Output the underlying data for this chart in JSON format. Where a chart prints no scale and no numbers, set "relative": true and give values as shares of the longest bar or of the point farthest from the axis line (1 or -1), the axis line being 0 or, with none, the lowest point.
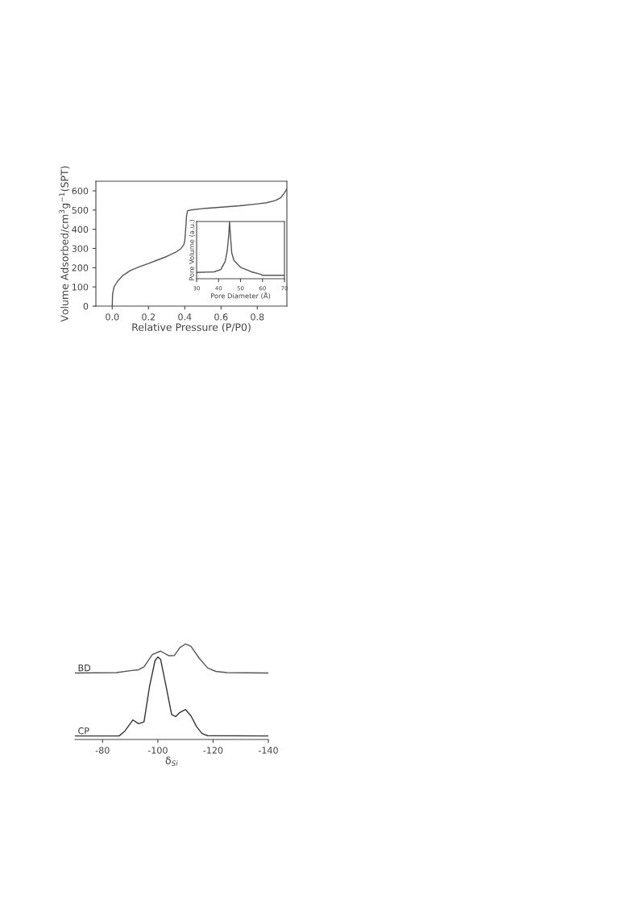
{
  "chart_data": [
    {
      "type": "line",
      "xlabel": "Relative Pressure (P/P0)",
      "ylabel": "Volume Adsorbed/cm$^{3}$g$^{−1}$(SPT)",
      "xlim": [
        -0.09,
        0.963
      ],
      "ylim": [
        0,
        650
      ],
      "xticks": [
        {
          "value": 0,
          "label": "0.0"
        },
        {
          "value": 0.2,
          "label": "0.2"
        },
        {
          "value": 0.4,
          "label": "0.4"
        },
        {
          "value": 0.6,
          "label": "0.6"
        },
        {
          "value": 0.8,
          "label": "0.8"
        }
      ],
      "yticks": [
        0,
        100,
        200,
        300,
        400,
        500,
        600
      ],
      "grid": false,
      "marker": "none",
      "line_style": "solid",
      "x": [
        0,
        0.002,
        0.01,
        0.03,
        0.06,
        0.1,
        0.15,
        0.2,
        0.25,
        0.3,
        0.35,
        0.38,
        0.395,
        0.4,
        0.405,
        0.41,
        0.415,
        0.43,
        0.5,
        0.6,
        0.7,
        0.8,
        0.85,
        0.9,
        0.93,
        0.95,
        0.963
      ],
      "series": [
        {
          "color": "#555555",
          "values": [
            0,
            60,
            100,
            130,
            160,
            185,
            205,
            222,
            240,
            258,
            280,
            300,
            320,
            340,
            400,
            470,
            495,
            500,
            508,
            515,
            522,
            532,
            538,
            550,
            565,
            590,
            610
          ]
        }
      ]
    },
    {
      "type": "line",
      "xlabel": "Pore Diameter (Å)",
      "ylabel": "Pore Volume (a.u.)",
      "relative": true,
      "xlim": [
        30,
        70
      ],
      "xticks": [
        30,
        40,
        50,
        60,
        70
      ],
      "grid": false,
      "marker": "none",
      "line_style": "solid",
      "x": [
        30,
        38,
        41,
        43,
        44,
        44.7,
        45,
        45.5,
        46,
        47,
        50,
        55,
        59,
        60,
        70
      ],
      "series": [
        {
          "color": "#555555",
          "values": [
            0.11,
            0.12,
            0.16,
            0.3,
            0.5,
            0.8,
            1.0,
            0.7,
            0.45,
            0.32,
            0.2,
            0.12,
            0.08,
            0.06,
            0.06
          ]
        }
      ]
    },
    {
      "type": "line",
      "xlabel": "δ$_{Si}$",
      "relative": true,
      "xlim": [
        -70,
        -140
      ],
      "xticks": [
        -80,
        -100,
        -120,
        -140
      ],
      "grid": false,
      "marker": "none",
      "line_style": "solid",
      "series": [
        {
          "name": "BD",
          "color": "#555555",
          "x": [
            -70,
            -85,
            -90,
            -93,
            -95,
            -98,
            -101,
            -104,
            -106,
            -108,
            -110,
            -112,
            -115,
            -118,
            -121,
            -125,
            -140
          ],
          "values": [
            0.696,
            0.7,
            0.72,
            0.73,
            0.76,
            0.89,
            0.926,
            0.877,
            0.88,
            0.963,
            1.0,
            0.975,
            0.85,
            0.75,
            0.713,
            0.7,
            0.696
          ]
        },
        {
          "name": "CP",
          "color": "#333333",
          "x": [
            -70,
            -86,
            -88,
            -91,
            -93,
            -95,
            -97,
            -99,
            -100,
            -101,
            -103,
            -105,
            -106.5,
            -108,
            -110,
            -112,
            -114,
            -116,
            -118,
            -140
          ],
          "values": [
            0.037,
            0.037,
            0.086,
            0.205,
            0.165,
            0.185,
            0.556,
            0.827,
            0.864,
            0.84,
            0.556,
            0.26,
            0.24,
            0.284,
            0.314,
            0.247,
            0.136,
            0.062,
            0.04,
            0.037
          ]
        }
      ]
    }
  ]
}
